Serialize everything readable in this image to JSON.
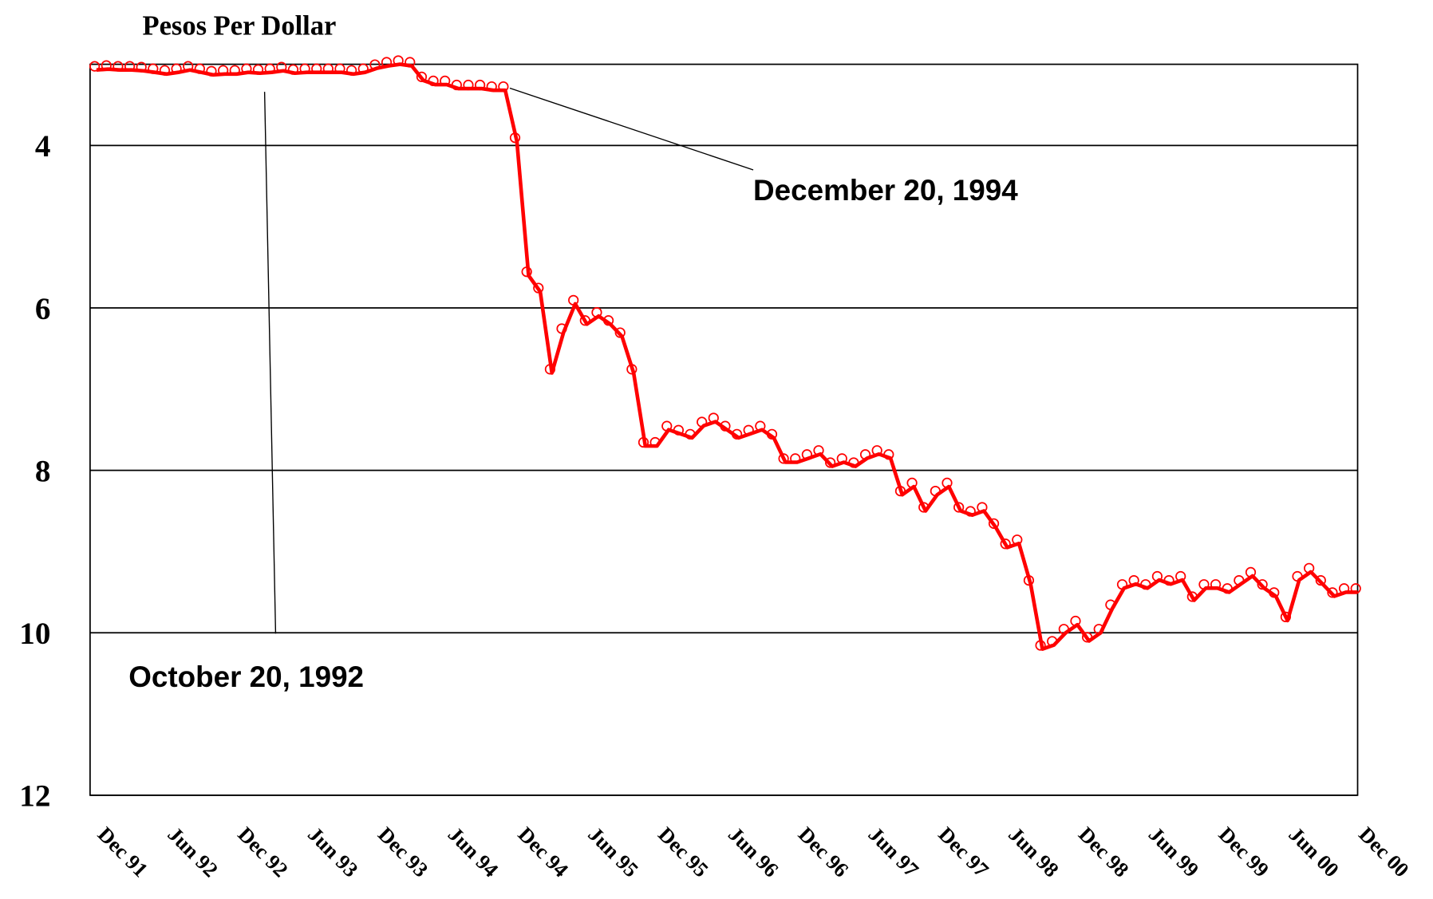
{
  "chart_data": {
    "type": "line",
    "title": "Pesos Per Dollar",
    "categories": [
      "Dec 91",
      null,
      null,
      null,
      null,
      null,
      "Jun 92",
      null,
      null,
      null,
      null,
      null,
      "Dec 92",
      null,
      null,
      null,
      null,
      null,
      "Jun 93",
      null,
      null,
      null,
      null,
      null,
      "Dec 93",
      null,
      null,
      null,
      null,
      null,
      "Jun 94",
      null,
      null,
      null,
      null,
      null,
      "Dec 94",
      null,
      null,
      null,
      null,
      null,
      "Jun 95",
      null,
      null,
      null,
      null,
      null,
      "Dec 95",
      null,
      null,
      null,
      null,
      null,
      "Jun 96",
      null,
      null,
      null,
      null,
      null,
      "Dec 96",
      null,
      null,
      null,
      null,
      null,
      "Jun 97",
      null,
      null,
      null,
      null,
      null,
      "Dec 97",
      null,
      null,
      null,
      null,
      null,
      "Jun 98",
      null,
      null,
      null,
      null,
      null,
      "Dec 98",
      null,
      null,
      null,
      null,
      null,
      "Jun 99",
      null,
      null,
      null,
      null,
      null,
      "Dec 99",
      null,
      null,
      null,
      null,
      null,
      "Jun 00",
      null,
      null,
      null,
      null,
      null,
      "Dec 00"
    ],
    "series": [
      {
        "color": "#ff0000",
        "values": [
          3.07,
          3.06,
          3.07,
          3.07,
          3.08,
          3.1,
          3.12,
          3.1,
          3.07,
          3.1,
          3.13,
          3.12,
          3.12,
          3.1,
          3.11,
          3.1,
          3.08,
          3.11,
          3.1,
          3.1,
          3.1,
          3.1,
          3.12,
          3.1,
          3.05,
          3.02,
          3.0,
          3.02,
          3.2,
          3.25,
          3.25,
          3.3,
          3.3,
          3.3,
          3.32,
          3.32,
          3.95,
          5.6,
          5.8,
          6.8,
          6.3,
          5.95,
          6.2,
          6.1,
          6.2,
          6.35,
          6.8,
          7.7,
          7.7,
          7.5,
          7.55,
          7.6,
          7.45,
          7.4,
          7.5,
          7.6,
          7.55,
          7.5,
          7.6,
          7.9,
          7.9,
          7.85,
          7.8,
          7.95,
          7.9,
          7.95,
          7.85,
          7.8,
          7.85,
          8.3,
          8.2,
          8.5,
          8.3,
          8.2,
          8.5,
          8.55,
          8.5,
          8.7,
          8.95,
          8.9,
          9.4,
          10.2,
          10.15,
          10.0,
          9.9,
          10.1,
          10.0,
          9.7,
          9.45,
          9.4,
          9.45,
          9.35,
          9.4,
          9.35,
          9.6,
          9.45,
          9.45,
          9.5,
          9.4,
          9.3,
          9.45,
          9.55,
          9.85,
          9.35,
          9.25,
          9.4,
          9.55,
          9.5,
          9.5
        ]
      }
    ],
    "ylim": [
      3,
      12
    ],
    "yticks": [
      4,
      6,
      8,
      10,
      12
    ],
    "y_inverted": true,
    "grid": true,
    "annotations": [
      "December 20, 1994",
      "October 20, 1992"
    ]
  }
}
